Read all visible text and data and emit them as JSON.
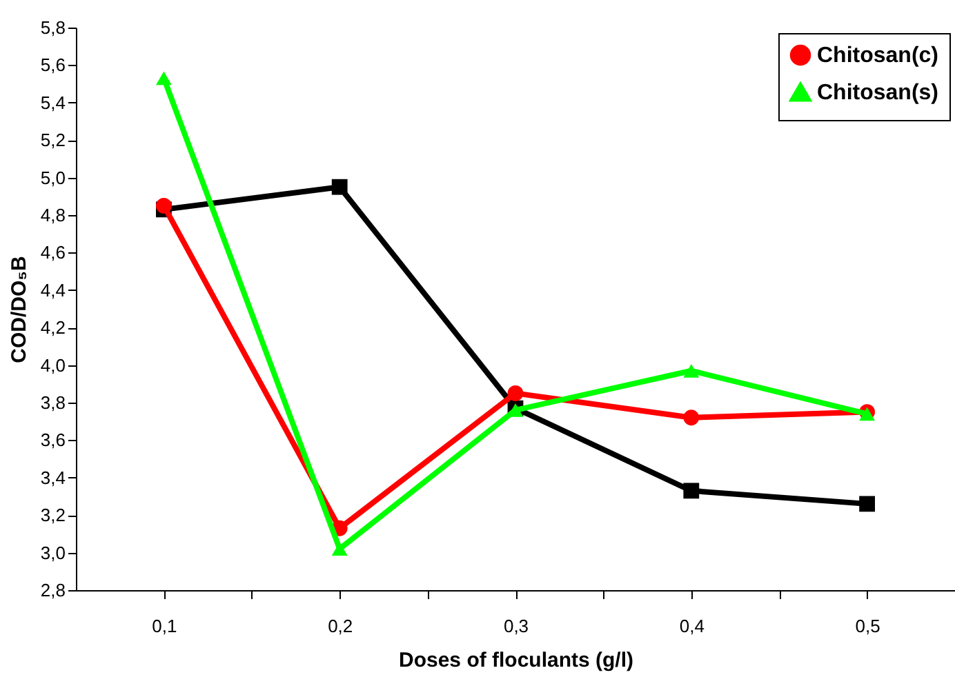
{
  "chart_data": {
    "type": "line",
    "xlabel": "Doses of floculants (g/l)",
    "ylabel": "COD/DO₅B",
    "x": [
      0.1,
      0.2,
      0.3,
      0.4,
      0.5
    ],
    "series": [
      {
        "color": "#000000",
        "marker": "square",
        "values": [
          4.83,
          4.95,
          3.77,
          3.33,
          3.26
        ]
      },
      {
        "name": " Chitosan(c)",
        "color": "#ff0000",
        "marker": "circle",
        "values": [
          4.85,
          3.13,
          3.85,
          3.72,
          3.75
        ]
      },
      {
        "name": "Chitosan(s)",
        "color": "#00ff00",
        "marker": "triangle",
        "values": [
          5.53,
          3.02,
          3.76,
          3.97,
          3.74
        ]
      }
    ],
    "xlim": [
      0.05,
      0.55
    ],
    "xticks": [
      {
        "value": 0.1,
        "label": "0,1"
      },
      {
        "value": 0.15,
        "label": null
      },
      {
        "value": 0.2,
        "label": "0,2"
      },
      {
        "value": 0.25,
        "label": null
      },
      {
        "value": 0.3,
        "label": "0,3"
      },
      {
        "value": 0.35,
        "label": null
      },
      {
        "value": 0.4,
        "label": "0,4"
      },
      {
        "value": 0.45,
        "label": null
      },
      {
        "value": 0.5,
        "label": "0,5"
      }
    ],
    "ylim": [
      2.8,
      5.8
    ],
    "yticks": [
      {
        "value": 2.8,
        "label": "2,8"
      },
      {
        "value": 3.0,
        "label": "3,0"
      },
      {
        "value": 3.2,
        "label": "3,2"
      },
      {
        "value": 3.4,
        "label": "3,4"
      },
      {
        "value": 3.6,
        "label": "3,6"
      },
      {
        "value": 3.8,
        "label": "3,8"
      },
      {
        "value": 4.0,
        "label": "4,0"
      },
      {
        "value": 4.2,
        "label": "4,2"
      },
      {
        "value": 4.4,
        "label": "4,4"
      },
      {
        "value": 4.6,
        "label": "4,6"
      },
      {
        "value": 4.8,
        "label": "4,8"
      },
      {
        "value": 5.0,
        "label": "5,0"
      },
      {
        "value": 5.2,
        "label": "5,2"
      },
      {
        "value": 5.4,
        "label": "5,4"
      },
      {
        "value": 5.6,
        "label": "5,6"
      },
      {
        "value": 5.8,
        "label": "5,8"
      }
    ],
    "grid": false,
    "legend": "top right",
    "line_style": "solid"
  }
}
